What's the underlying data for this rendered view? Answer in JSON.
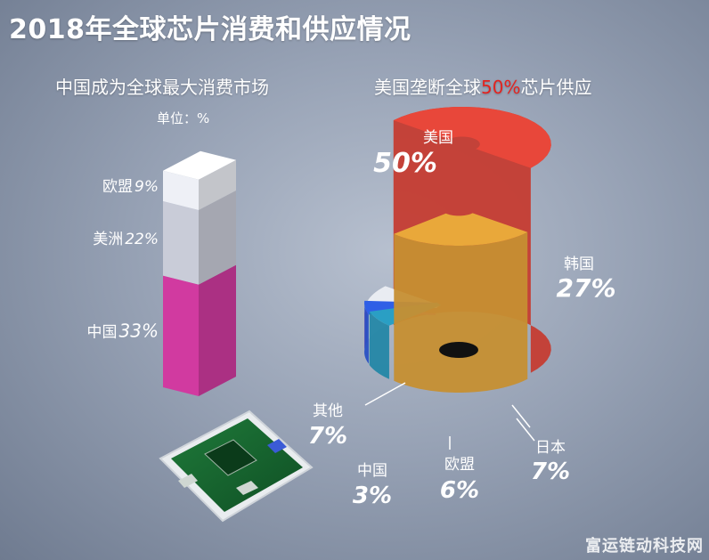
{
  "title": "2018年全球芯片消费和供应情况",
  "left_chart": {
    "subtitle": "中国成为全球最大消费市场",
    "unit": "单位：%"
  },
  "right_chart": {
    "subtitle_prefix": "美国垄断全球",
    "subtitle_highlight": "50%",
    "subtitle_suffix": "芯片供应"
  },
  "watermark": "富运链动科技网",
  "colors": {
    "china": "#d13aa0",
    "americas": "#c9ccd8",
    "eu": "#eef0f6",
    "usa": "#e8473a",
    "korea": "#e9a83a",
    "japan": "#2a9fc4",
    "eu_supply": "#2f5fe6",
    "china_supply": "#d6339f",
    "other": "#e9ecf2",
    "highlight": "#e3231f"
  },
  "chart_data": [
    {
      "type": "bar",
      "stacked": true,
      "series": [
        {
          "name": "中国",
          "value": 33,
          "label": "中国",
          "value_label": "33%"
        },
        {
          "name": "美洲",
          "value": 22,
          "label": "美洲",
          "value_label": "22%"
        },
        {
          "name": "欧盟",
          "value": 9,
          "label": "欧盟",
          "value_label": "9%"
        }
      ]
    },
    {
      "type": "pie",
      "slices": [
        {
          "name": "美国",
          "value": 50,
          "value_label": "50%"
        },
        {
          "name": "韩国",
          "value": 27,
          "value_label": "27%"
        },
        {
          "name": "日本",
          "value": 7,
          "value_label": "7%"
        },
        {
          "name": "欧盟",
          "value": 6,
          "value_label": "6%"
        },
        {
          "name": "中国",
          "value": 3,
          "value_label": "3%"
        },
        {
          "name": "其他",
          "value": 7,
          "value_label": "7%"
        }
      ]
    }
  ]
}
